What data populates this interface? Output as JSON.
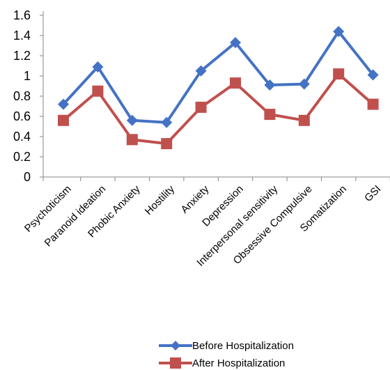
{
  "chart_data": {
    "type": "line",
    "categories": [
      "Psychoticism",
      "Paranoid ideation",
      "Phobic Anxiety",
      "Hostility",
      "Anxiety",
      "Depression",
      "Interpersonal sensitivity",
      "Obsessive Compulsive",
      "Somatization",
      "GSI"
    ],
    "series": [
      {
        "name": "Before Hospitalization",
        "color": "#4472C4",
        "marker": "diamond",
        "values": [
          0.72,
          1.09,
          0.56,
          0.54,
          1.05,
          1.33,
          0.91,
          0.92,
          1.44,
          1.01
        ]
      },
      {
        "name": "After Hospitalization",
        "color": "#C0504D",
        "marker": "square",
        "values": [
          0.56,
          0.85,
          0.37,
          0.33,
          0.69,
          0.93,
          0.62,
          0.56,
          1.02,
          0.72
        ]
      }
    ],
    "ylim": [
      0,
      1.6
    ],
    "yticks": [
      "0",
      "0.2",
      "0.4",
      "0.6",
      "0.8",
      "1",
      "1.2",
      "1.4",
      "1.6"
    ],
    "title": "",
    "xlabel": "",
    "ylabel": "",
    "grid": false,
    "legend_position": "bottom"
  }
}
